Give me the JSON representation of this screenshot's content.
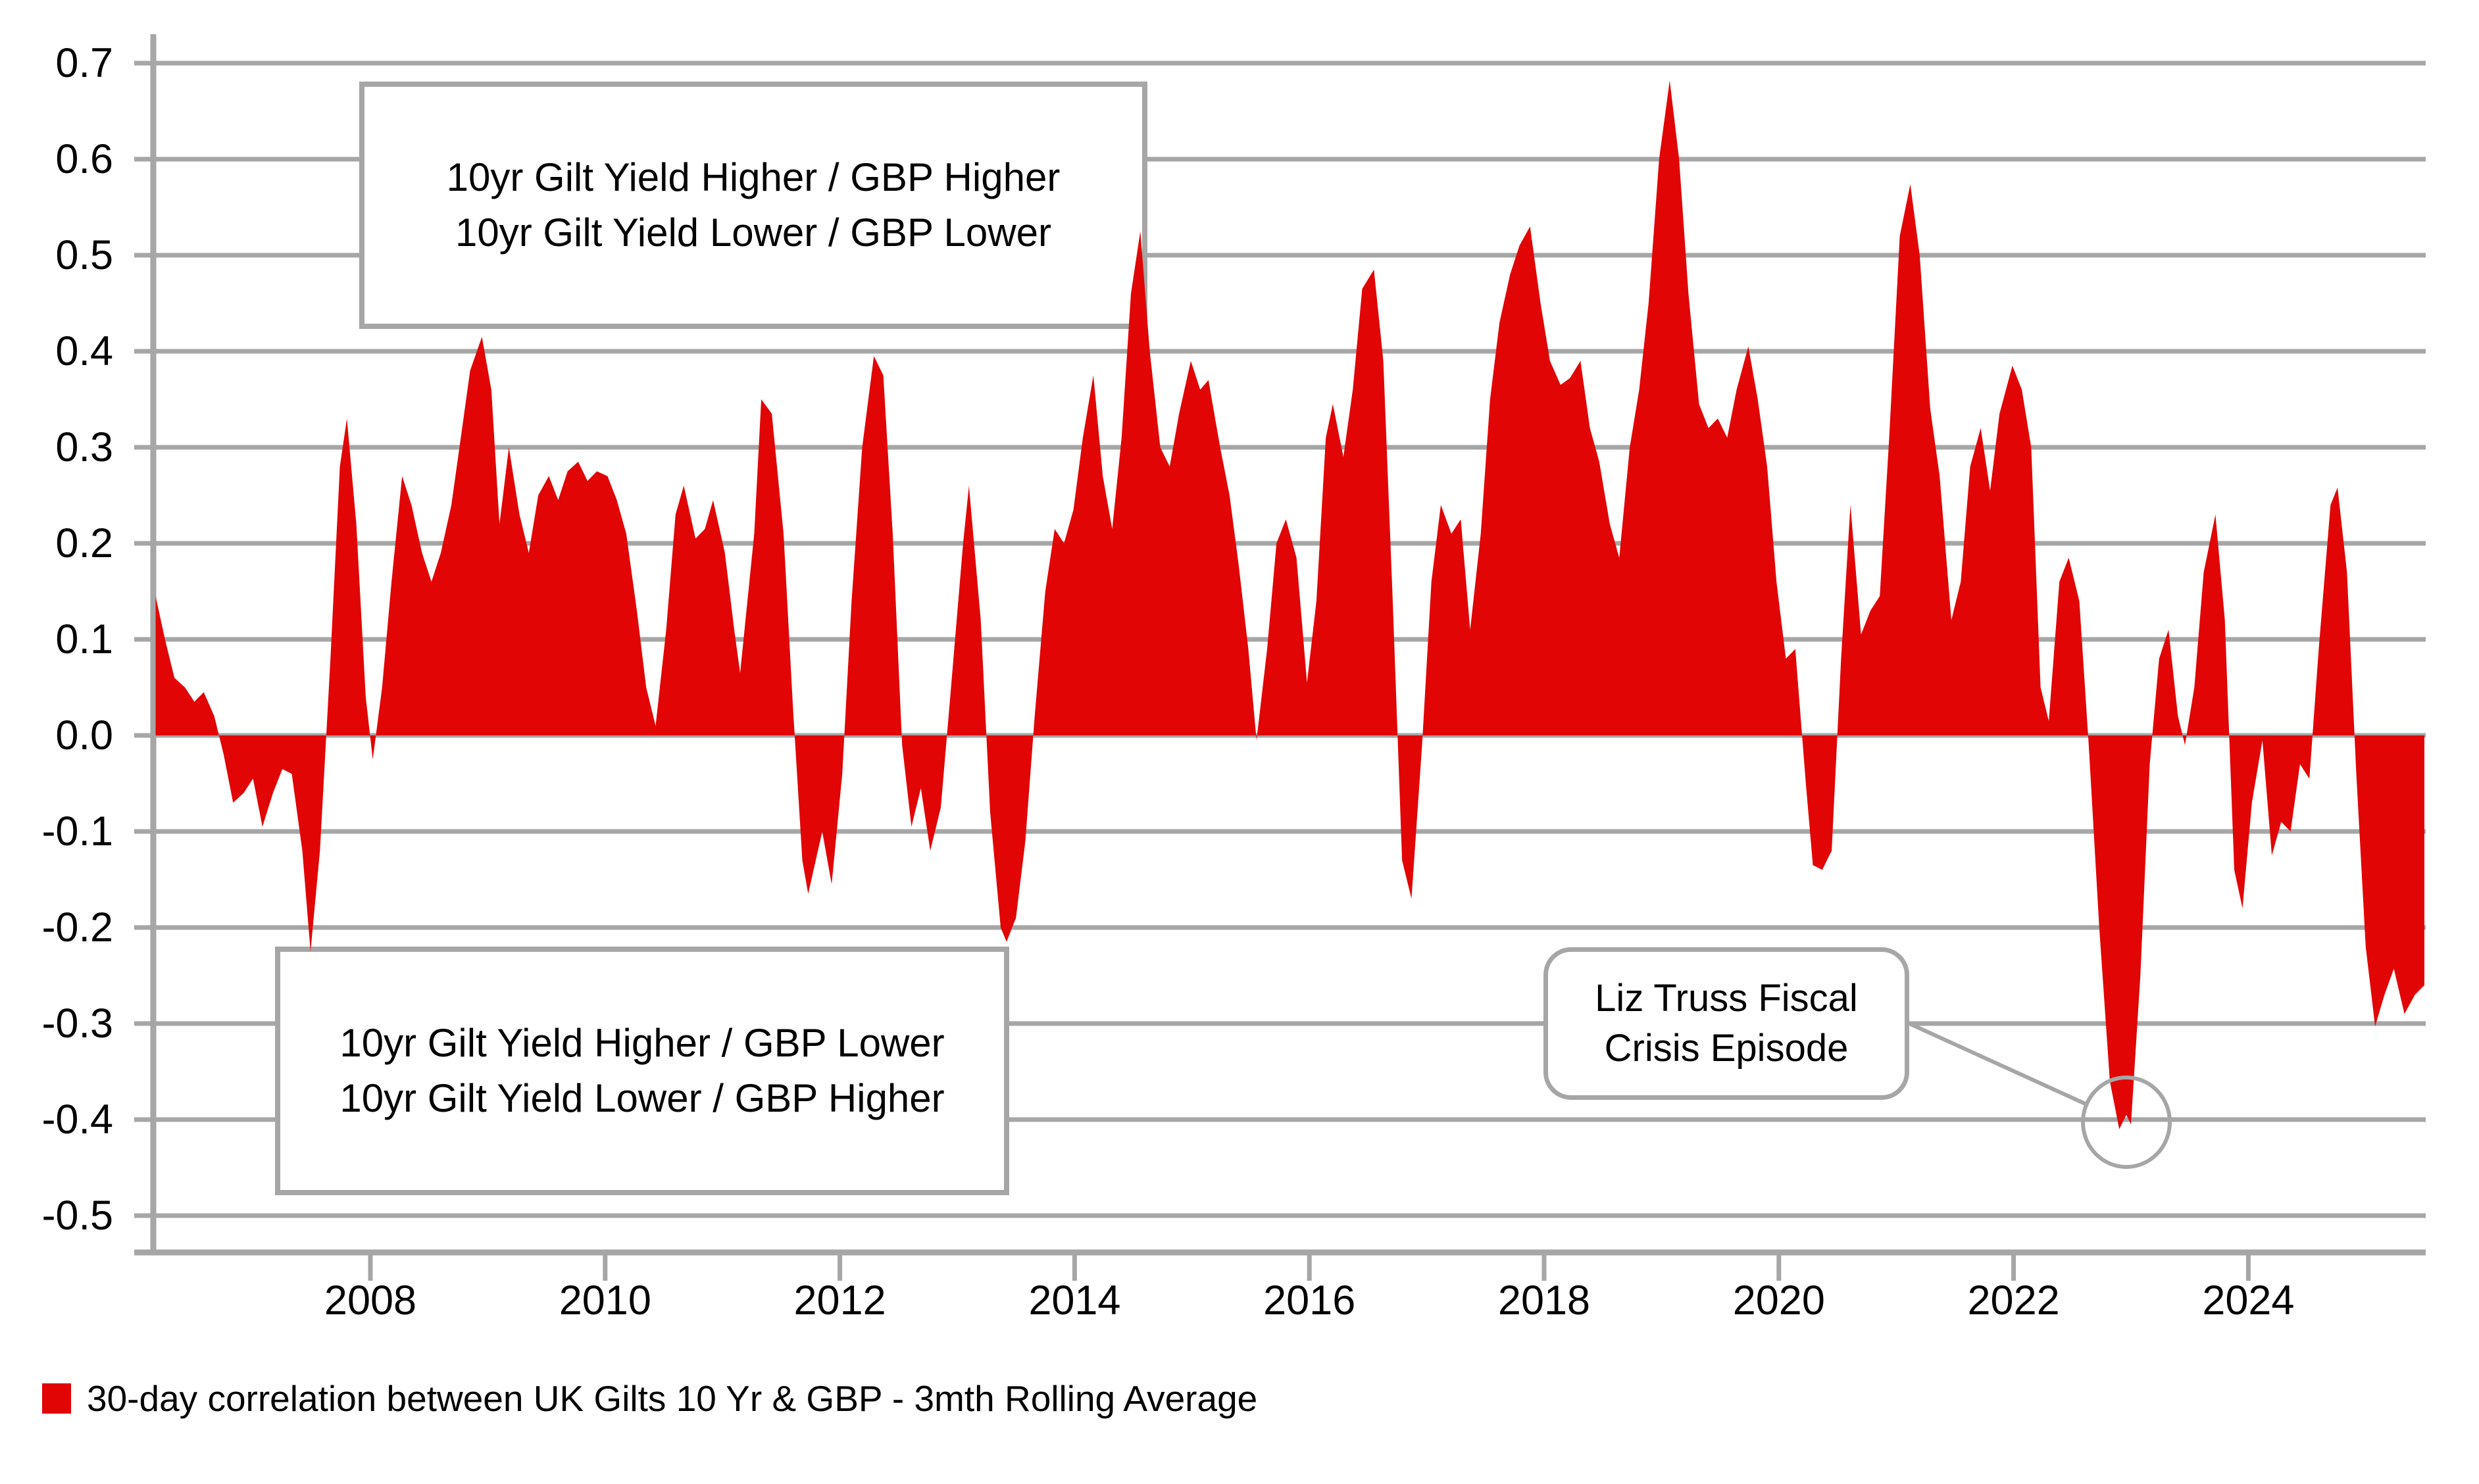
{
  "chart_data": {
    "type": "area",
    "title": "",
    "xlabel": "",
    "ylabel": "",
    "grid": "horizontal gridlines on, gray",
    "legend_position": "bottom-left",
    "ylim": [
      -0.5,
      0.7
    ],
    "xlim": [
      2006.1,
      2025.6
    ],
    "y_ticks": [
      {
        "label": "0.7",
        "value": 0.7
      },
      {
        "label": "0.6",
        "value": 0.6
      },
      {
        "label": "0.5",
        "value": 0.5
      },
      {
        "label": "0.4",
        "value": 0.4
      },
      {
        "label": "0.3",
        "value": 0.3
      },
      {
        "label": "0.2",
        "value": 0.2
      },
      {
        "label": "0.1",
        "value": 0.1
      },
      {
        "label": "0.0",
        "value": 0.0
      },
      {
        "label": "-0.1",
        "value": -0.1
      },
      {
        "label": "-0.2",
        "value": -0.2
      },
      {
        "label": "-0.3",
        "value": -0.3
      },
      {
        "label": "-0.4",
        "value": -0.4
      },
      {
        "label": "-0.5",
        "value": -0.5
      }
    ],
    "x_ticks": [
      {
        "label": "2008",
        "year": 2008
      },
      {
        "label": "2010",
        "year": 2010
      },
      {
        "label": "2012",
        "year": 2012
      },
      {
        "label": "2014",
        "year": 2014
      },
      {
        "label": "2016",
        "year": 2016
      },
      {
        "label": "2018",
        "year": 2018
      },
      {
        "label": "2020",
        "year": 2020
      },
      {
        "label": "2022",
        "year": 2022
      },
      {
        "label": "2024",
        "year": 2024
      }
    ],
    "series": [
      {
        "name": "30-day correlation between UK Gilts 10 Yr & GBP - 3mth Rolling Average",
        "color": "#e10505",
        "points": [
          [
            2006.17,
            0.145
          ],
          [
            2006.25,
            0.1
          ],
          [
            2006.33,
            0.06
          ],
          [
            2006.42,
            0.05
          ],
          [
            2006.5,
            0.035
          ],
          [
            2006.58,
            0.045
          ],
          [
            2006.67,
            0.02
          ],
          [
            2006.75,
            -0.02
          ],
          [
            2006.83,
            -0.07
          ],
          [
            2006.92,
            -0.06
          ],
          [
            2007.0,
            -0.045
          ],
          [
            2007.08,
            -0.095
          ],
          [
            2007.17,
            -0.06
          ],
          [
            2007.25,
            -0.035
          ],
          [
            2007.33,
            -0.04
          ],
          [
            2007.42,
            -0.12
          ],
          [
            2007.49,
            -0.225
          ],
          [
            2007.57,
            -0.12
          ],
          [
            2007.66,
            0.08
          ],
          [
            2007.74,
            0.28
          ],
          [
            2007.8,
            0.33
          ],
          [
            2007.88,
            0.22
          ],
          [
            2007.96,
            0.04
          ],
          [
            2008.02,
            -0.025
          ],
          [
            2008.1,
            0.05
          ],
          [
            2008.18,
            0.16
          ],
          [
            2008.27,
            0.27
          ],
          [
            2008.35,
            0.24
          ],
          [
            2008.44,
            0.19
          ],
          [
            2008.52,
            0.16
          ],
          [
            2008.6,
            0.19
          ],
          [
            2008.69,
            0.24
          ],
          [
            2008.77,
            0.31
          ],
          [
            2008.85,
            0.38
          ],
          [
            2008.95,
            0.415
          ],
          [
            2009.03,
            0.36
          ],
          [
            2009.1,
            0.22
          ],
          [
            2009.18,
            0.3
          ],
          [
            2009.27,
            0.23
          ],
          [
            2009.35,
            0.19
          ],
          [
            2009.43,
            0.25
          ],
          [
            2009.52,
            0.27
          ],
          [
            2009.6,
            0.245
          ],
          [
            2009.68,
            0.275
          ],
          [
            2009.77,
            0.285
          ],
          [
            2009.85,
            0.265
          ],
          [
            2009.93,
            0.275
          ],
          [
            2010.02,
            0.27
          ],
          [
            2010.1,
            0.245
          ],
          [
            2010.18,
            0.21
          ],
          [
            2010.27,
            0.13
          ],
          [
            2010.35,
            0.05
          ],
          [
            2010.43,
            0.01
          ],
          [
            2010.52,
            0.11
          ],
          [
            2010.6,
            0.23
          ],
          [
            2010.67,
            0.26
          ],
          [
            2010.77,
            0.205
          ],
          [
            2010.85,
            0.215
          ],
          [
            2010.92,
            0.245
          ],
          [
            2011.02,
            0.19
          ],
          [
            2011.1,
            0.11
          ],
          [
            2011.15,
            0.065
          ],
          [
            2011.27,
            0.21
          ],
          [
            2011.33,
            0.35
          ],
          [
            2011.42,
            0.335
          ],
          [
            2011.52,
            0.21
          ],
          [
            2011.6,
            0.03
          ],
          [
            2011.68,
            -0.13
          ],
          [
            2011.73,
            -0.165
          ],
          [
            2011.85,
            -0.1
          ],
          [
            2011.93,
            -0.155
          ],
          [
            2012.02,
            -0.04
          ],
          [
            2012.1,
            0.14
          ],
          [
            2012.19,
            0.3
          ],
          [
            2012.29,
            0.395
          ],
          [
            2012.37,
            0.375
          ],
          [
            2012.45,
            0.21
          ],
          [
            2012.53,
            -0.01
          ],
          [
            2012.61,
            -0.095
          ],
          [
            2012.69,
            -0.055
          ],
          [
            2012.77,
            -0.12
          ],
          [
            2012.86,
            -0.075
          ],
          [
            2012.94,
            0.04
          ],
          [
            2013.05,
            0.2
          ],
          [
            2013.1,
            0.26
          ],
          [
            2013.2,
            0.12
          ],
          [
            2013.28,
            -0.08
          ],
          [
            2013.37,
            -0.2
          ],
          [
            2013.42,
            -0.215
          ],
          [
            2013.5,
            -0.19
          ],
          [
            2013.58,
            -0.11
          ],
          [
            2013.66,
            0.02
          ],
          [
            2013.75,
            0.15
          ],
          [
            2013.83,
            0.215
          ],
          [
            2013.91,
            0.2
          ],
          [
            2013.99,
            0.235
          ],
          [
            2014.07,
            0.31
          ],
          [
            2014.16,
            0.375
          ],
          [
            2014.24,
            0.27
          ],
          [
            2014.32,
            0.215
          ],
          [
            2014.4,
            0.31
          ],
          [
            2014.48,
            0.46
          ],
          [
            2014.56,
            0.525
          ],
          [
            2014.64,
            0.4
          ],
          [
            2014.73,
            0.3
          ],
          [
            2014.81,
            0.28
          ],
          [
            2014.89,
            0.335
          ],
          [
            2014.99,
            0.39
          ],
          [
            2015.07,
            0.36
          ],
          [
            2015.14,
            0.37
          ],
          [
            2015.24,
            0.3
          ],
          [
            2015.32,
            0.25
          ],
          [
            2015.4,
            0.175
          ],
          [
            2015.48,
            0.09
          ],
          [
            2015.55,
            -0.005
          ],
          [
            2015.64,
            0.09
          ],
          [
            2015.72,
            0.2
          ],
          [
            2015.8,
            0.225
          ],
          [
            2015.89,
            0.185
          ],
          [
            2015.98,
            0.055
          ],
          [
            2016.06,
            0.14
          ],
          [
            2016.14,
            0.31
          ],
          [
            2016.2,
            0.345
          ],
          [
            2016.29,
            0.29
          ],
          [
            2016.37,
            0.36
          ],
          [
            2016.45,
            0.465
          ],
          [
            2016.55,
            0.485
          ],
          [
            2016.63,
            0.39
          ],
          [
            2016.71,
            0.14
          ],
          [
            2016.79,
            -0.13
          ],
          [
            2016.87,
            -0.17
          ],
          [
            2016.96,
            -0.01
          ],
          [
            2017.04,
            0.16
          ],
          [
            2017.12,
            0.24
          ],
          [
            2017.21,
            0.21
          ],
          [
            2017.29,
            0.225
          ],
          [
            2017.37,
            0.11
          ],
          [
            2017.46,
            0.21
          ],
          [
            2017.54,
            0.35
          ],
          [
            2017.62,
            0.43
          ],
          [
            2017.71,
            0.48
          ],
          [
            2017.79,
            0.51
          ],
          [
            2017.88,
            0.53
          ],
          [
            2017.97,
            0.45
          ],
          [
            2018.05,
            0.39
          ],
          [
            2018.14,
            0.365
          ],
          [
            2018.22,
            0.372
          ],
          [
            2018.31,
            0.39
          ],
          [
            2018.39,
            0.32
          ],
          [
            2018.47,
            0.285
          ],
          [
            2018.56,
            0.22
          ],
          [
            2018.64,
            0.185
          ],
          [
            2018.73,
            0.3
          ],
          [
            2018.81,
            0.36
          ],
          [
            2018.89,
            0.45
          ],
          [
            2018.98,
            0.6
          ],
          [
            2019.07,
            0.682
          ],
          [
            2019.15,
            0.6
          ],
          [
            2019.23,
            0.46
          ],
          [
            2019.32,
            0.345
          ],
          [
            2019.4,
            0.32
          ],
          [
            2019.48,
            0.33
          ],
          [
            2019.56,
            0.31
          ],
          [
            2019.64,
            0.36
          ],
          [
            2019.74,
            0.405
          ],
          [
            2019.82,
            0.35
          ],
          [
            2019.9,
            0.28
          ],
          [
            2019.98,
            0.16
          ],
          [
            2020.06,
            0.08
          ],
          [
            2020.14,
            0.09
          ],
          [
            2020.23,
            -0.05
          ],
          [
            2020.29,
            -0.135
          ],
          [
            2020.37,
            -0.14
          ],
          [
            2020.45,
            -0.12
          ],
          [
            2020.53,
            0.08
          ],
          [
            2020.61,
            0.24
          ],
          [
            2020.7,
            0.105
          ],
          [
            2020.78,
            0.13
          ],
          [
            2020.86,
            0.145
          ],
          [
            2020.94,
            0.31
          ],
          [
            2021.03,
            0.52
          ],
          [
            2021.12,
            0.574
          ],
          [
            2021.2,
            0.5
          ],
          [
            2021.29,
            0.34
          ],
          [
            2021.37,
            0.27
          ],
          [
            2021.47,
            0.12
          ],
          [
            2021.55,
            0.16
          ],
          [
            2021.63,
            0.28
          ],
          [
            2021.72,
            0.32
          ],
          [
            2021.8,
            0.255
          ],
          [
            2021.88,
            0.335
          ],
          [
            2021.99,
            0.385
          ],
          [
            2022.07,
            0.36
          ],
          [
            2022.15,
            0.3
          ],
          [
            2022.23,
            0.05
          ],
          [
            2022.3,
            0.015
          ],
          [
            2022.39,
            0.16
          ],
          [
            2022.47,
            0.185
          ],
          [
            2022.56,
            0.14
          ],
          [
            2022.64,
            -0.01
          ],
          [
            2022.73,
            -0.2
          ],
          [
            2022.82,
            -0.36
          ],
          [
            2022.9,
            -0.41
          ],
          [
            2022.96,
            -0.395
          ],
          [
            2023.0,
            -0.405
          ],
          [
            2023.08,
            -0.25
          ],
          [
            2023.16,
            -0.03
          ],
          [
            2023.24,
            0.08
          ],
          [
            2023.32,
            0.11
          ],
          [
            2023.4,
            0.02
          ],
          [
            2023.46,
            -0.01
          ],
          [
            2023.54,
            0.05
          ],
          [
            2023.62,
            0.17
          ],
          [
            2023.72,
            0.23
          ],
          [
            2023.8,
            0.12
          ],
          [
            2023.88,
            -0.14
          ],
          [
            2023.95,
            -0.18
          ],
          [
            2024.03,
            -0.07
          ],
          [
            2024.12,
            -0.005
          ],
          [
            2024.2,
            -0.125
          ],
          [
            2024.28,
            -0.09
          ],
          [
            2024.36,
            -0.1
          ],
          [
            2024.44,
            -0.03
          ],
          [
            2024.52,
            -0.045
          ],
          [
            2024.6,
            0.09
          ],
          [
            2024.7,
            0.24
          ],
          [
            2024.76,
            0.258
          ],
          [
            2024.84,
            0.17
          ],
          [
            2024.92,
            -0.04
          ],
          [
            2025.0,
            -0.22
          ],
          [
            2025.08,
            -0.303
          ],
          [
            2025.16,
            -0.27
          ],
          [
            2025.24,
            -0.243
          ],
          [
            2025.33,
            -0.29
          ],
          [
            2025.42,
            -0.27
          ],
          [
            2025.5,
            -0.26
          ]
        ]
      }
    ]
  },
  "annotations": {
    "positive_box": {
      "line1": "10yr Gilt Yield Higher / GBP Higher",
      "line2": "10yr Gilt Yield Lower / GBP Lower"
    },
    "negative_box": {
      "line1": "10yr Gilt Yield Higher / GBP Lower",
      "line2": "10yr Gilt Yield Lower / GBP Higher"
    },
    "callout": {
      "line1": "Liz Truss Fiscal",
      "line2": "Crisis Episode",
      "circled_value": -0.41,
      "circled_year": "late 2022"
    }
  },
  "legend": {
    "label": "30-day correlation between UK Gilts 10 Yr & GBP - 3mth Rolling Average",
    "swatch_color": "#e10505"
  },
  "colors": {
    "series": "#e10505",
    "grid": "#a6a6a6",
    "axis": "#a6a6a6",
    "text": "#000000",
    "background": "#ffffff"
  }
}
